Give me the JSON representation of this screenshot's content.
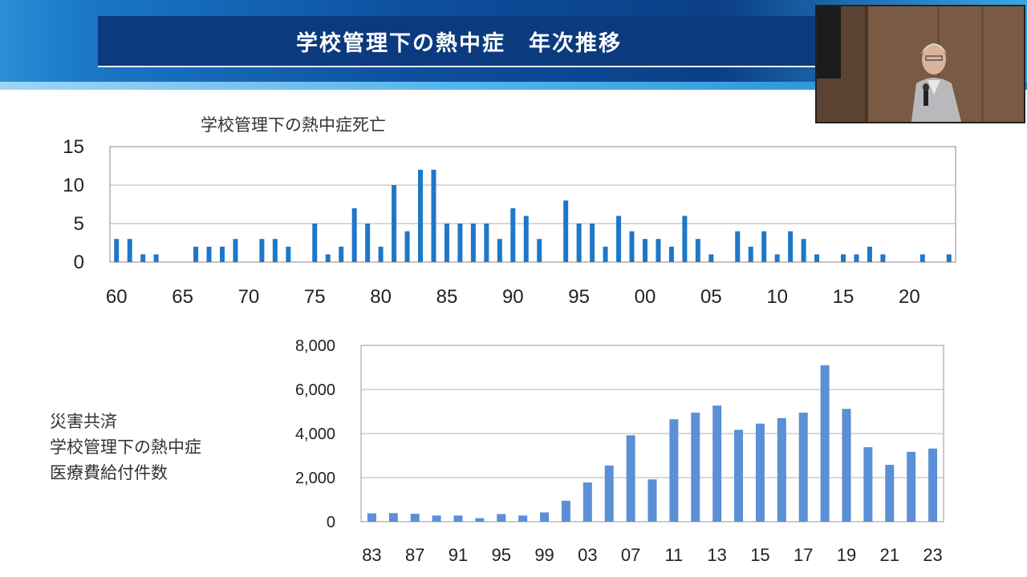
{
  "slide": {
    "title": "学校管理下の熱中症　年次推移"
  },
  "side_label_lines": [
    "災害共済",
    "学校管理下の熱中症",
    "医療費給付件数"
  ],
  "chart_data": [
    {
      "type": "bar",
      "title": "学校管理下の熱中症死亡",
      "ylim": [
        0,
        15
      ],
      "yticks": [
        "0",
        "5",
        "10",
        "15"
      ],
      "grid": true,
      "color": "#1f77c8",
      "x_labels": [
        "60",
        "65",
        "70",
        "75",
        "80",
        "85",
        "90",
        "95",
        "00",
        "05",
        "10",
        "15",
        "20"
      ],
      "categories": [
        "1960",
        "1961",
        "1962",
        "1963",
        "1964",
        "1965",
        "1966",
        "1967",
        "1968",
        "1969",
        "1970",
        "1971",
        "1972",
        "1973",
        "1974",
        "1975",
        "1976",
        "1977",
        "1978",
        "1979",
        "1980",
        "1981",
        "1982",
        "1983",
        "1984",
        "1985",
        "1986",
        "1987",
        "1988",
        "1989",
        "1990",
        "1991",
        "1992",
        "1993",
        "1994",
        "1995",
        "1996",
        "1997",
        "1998",
        "1999",
        "2000",
        "2001",
        "2002",
        "2003",
        "2004",
        "2005",
        "2006",
        "2007",
        "2008",
        "2009",
        "2010",
        "2011",
        "2012",
        "2013",
        "2014",
        "2015",
        "2016",
        "2017",
        "2018",
        "2019",
        "2020",
        "2021",
        "2022",
        "2023"
      ],
      "values": [
        3,
        3,
        1,
        1,
        0,
        0,
        2,
        2,
        2,
        3,
        0,
        3,
        3,
        2,
        0,
        5,
        1,
        2,
        7,
        5,
        2,
        10,
        4,
        12,
        12,
        5,
        5,
        5,
        5,
        3,
        7,
        6,
        3,
        0,
        8,
        5,
        5,
        2,
        6,
        4,
        3,
        3,
        2,
        6,
        3,
        1,
        0,
        4,
        2,
        4,
        1,
        4,
        3,
        1,
        0,
        1,
        1,
        2,
        1,
        0,
        0,
        1,
        0,
        1
      ]
    },
    {
      "type": "bar",
      "title": "",
      "ylim": [
        0,
        8000
      ],
      "yticks": [
        "0",
        "2,000",
        "4,000",
        "6,000",
        "8,000"
      ],
      "grid": true,
      "color": "#5b8fd6",
      "x_labels": [
        "83",
        "87",
        "91",
        "95",
        "99",
        "03",
        "07",
        "11",
        "13",
        "15",
        "17",
        "19",
        "21",
        "23"
      ],
      "categories": [
        "1983",
        "1985",
        "1987",
        "1989",
        "1991",
        "1993",
        "1995",
        "1997",
        "1999",
        "2001",
        "2003",
        "2005",
        "2007",
        "2009",
        "2011",
        "2012",
        "2013",
        "2014",
        "2015",
        "2016",
        "2017",
        "2018",
        "2019",
        "2020",
        "2021",
        "2022",
        "2023"
      ],
      "values": [
        380,
        390,
        360,
        280,
        280,
        160,
        350,
        280,
        420,
        950,
        1780,
        2550,
        3920,
        1920,
        4650,
        4950,
        5270,
        4170,
        4450,
        4700,
        4950,
        7100,
        5120,
        3380,
        2580,
        3170,
        3320
      ]
    }
  ]
}
